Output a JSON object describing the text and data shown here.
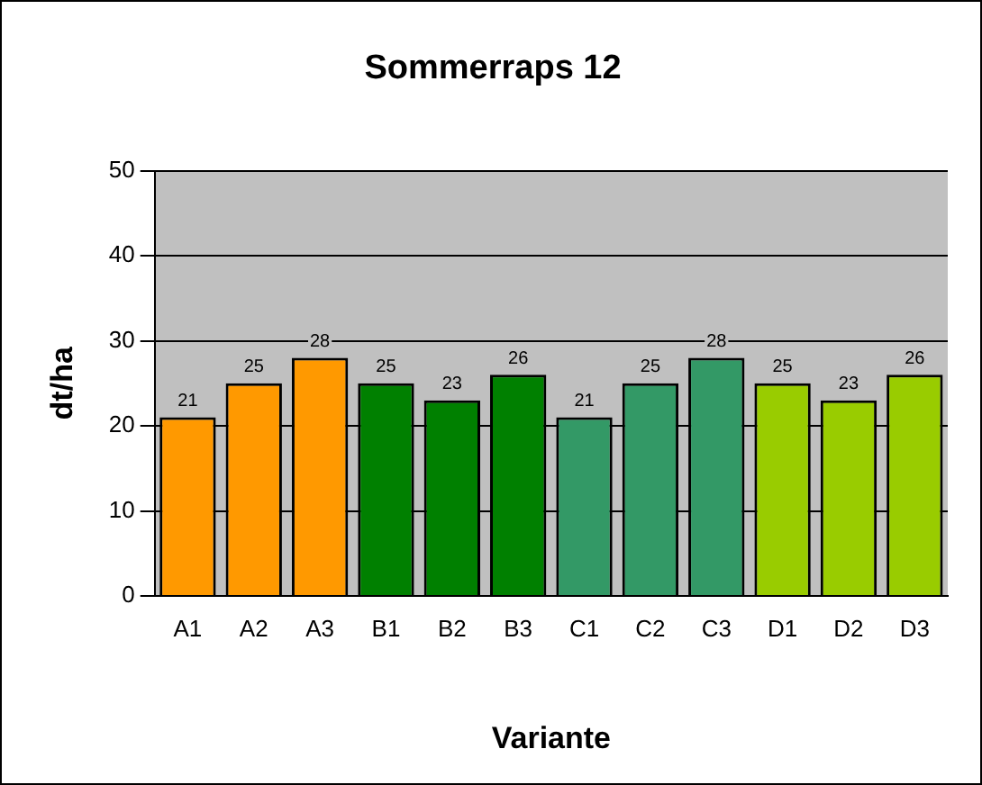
{
  "chart_data": {
    "type": "bar",
    "title": "Sommerraps 12",
    "xlabel": "Variante",
    "ylabel": "dt/ha",
    "categories": [
      "A1",
      "A2",
      "A3",
      "B1",
      "B2",
      "B3",
      "C1",
      "C2",
      "C3",
      "D1",
      "D2",
      "D3"
    ],
    "values": [
      21,
      25,
      28,
      25,
      23,
      26,
      21,
      25,
      28,
      25,
      23,
      26
    ],
    "colors": [
      "#ff9900",
      "#ff9900",
      "#ff9900",
      "#008000",
      "#008000",
      "#008000",
      "#339966",
      "#339966",
      "#339966",
      "#99cc00",
      "#99cc00",
      "#99cc00"
    ],
    "ylim": [
      0,
      50
    ],
    "yticks": [
      0,
      10,
      20,
      30,
      40,
      50
    ],
    "grid": "y",
    "data_labels": true,
    "legend": false
  }
}
